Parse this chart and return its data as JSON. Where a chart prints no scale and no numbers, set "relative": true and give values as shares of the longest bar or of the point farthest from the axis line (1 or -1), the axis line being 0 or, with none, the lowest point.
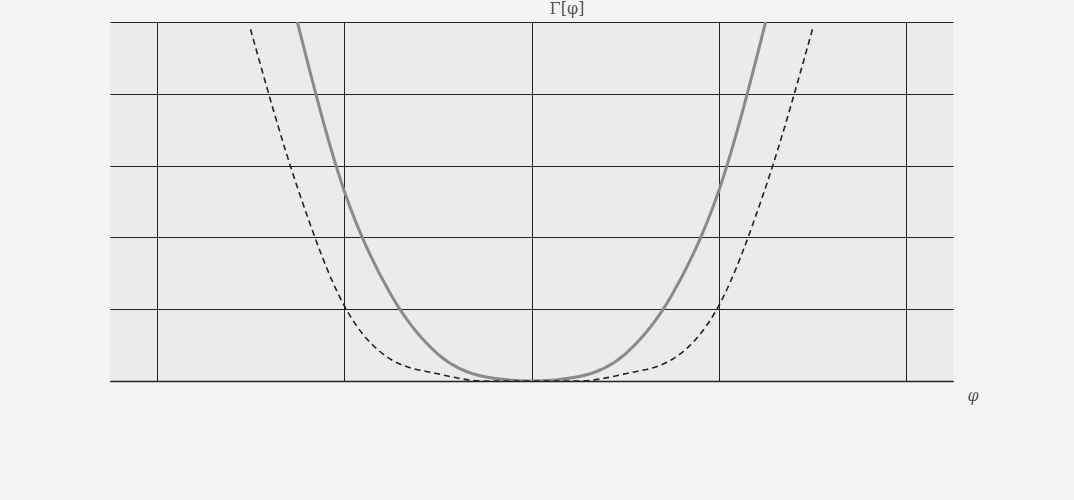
{
  "chart_data": {
    "type": "line",
    "relative": true,
    "xlabel": "φ",
    "ylabel": "Γ[φ]",
    "grid": true,
    "categories": [
      null,
      null,
      null,
      null,
      null,
      null,
      null,
      null,
      null,
      null,
      null,
      null,
      null,
      null,
      null,
      null,
      null
    ],
    "series": [
      {
        "color": "#8a8a8a",
        "line_style": "solid",
        "values": [
          null,
          null,
          null,
          1.0,
          0.53,
          0.24,
          0.075,
          0.012,
          0,
          0.012,
          0.075,
          0.24,
          0.53,
          1.0,
          null,
          null,
          null
        ]
      },
      {
        "color": "#222222",
        "line_style": "dashed",
        "values": [
          null,
          null,
          0.98,
          0.54,
          0.21,
          0.06,
          0.02,
          0,
          0,
          0,
          0.02,
          0.06,
          0.21,
          0.54,
          0.98,
          null,
          null
        ]
      }
    ]
  }
}
